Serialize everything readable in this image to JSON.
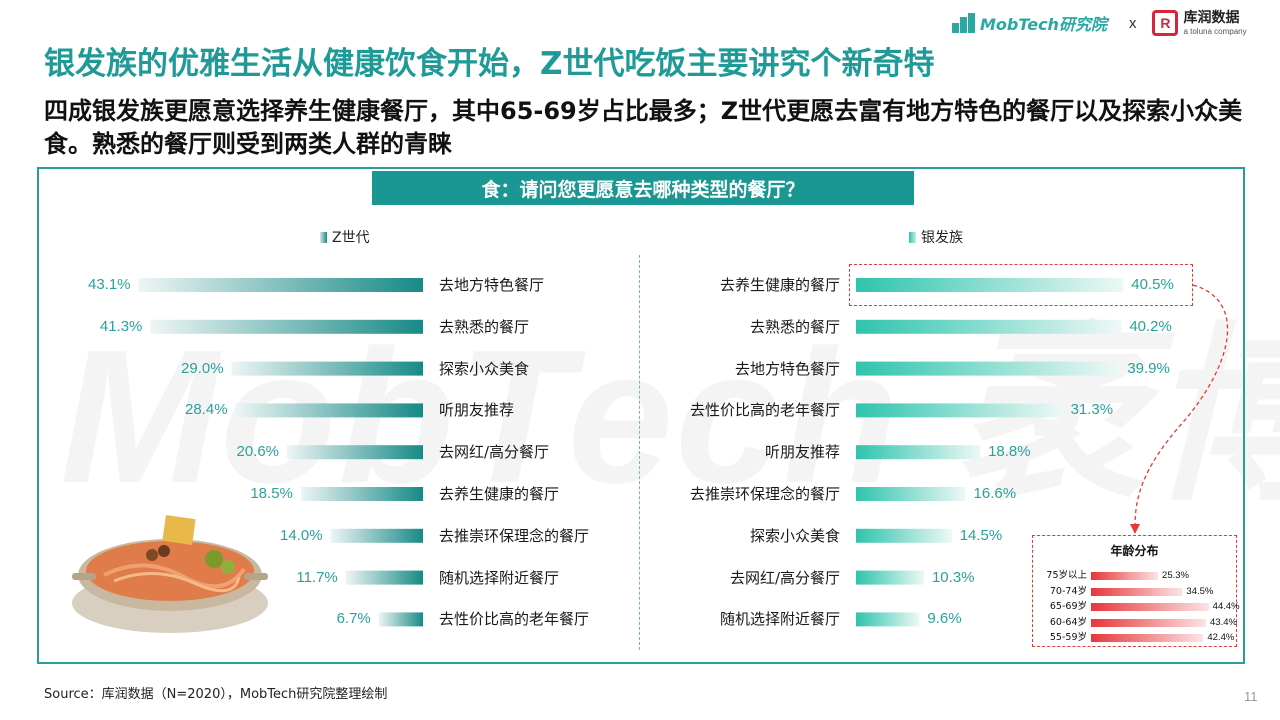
{
  "watermark": "MobTech 袤博",
  "brand": {
    "mobtech": "MobTech研究院",
    "separator": "x",
    "partner_mark": "R",
    "partner_name": "库润数据",
    "partner_sub": "a toluna company"
  },
  "title": "银发族的优雅生活从健康饮食开始，Z世代吃饭主要讲究个新奇特",
  "subtitle": "四成银发族更愿意选择养生健康餐厅，其中65-69岁占比最多；Z世代更愿去富有地方特色的餐厅以及探索小众美食。熟悉的餐厅则受到两类人群的青睐",
  "source": "Source：库润数据（N=2020），MobTech研究院整理绘制",
  "page_number": "11",
  "colors": {
    "accent": "#1a9792",
    "title": "#1f9a97",
    "value_text": "#2aa19c",
    "z_bar": "#178a86",
    "silver_bar": "#2ec4ad",
    "age_bar": "#e6373a",
    "highlight": "#e53935"
  },
  "chart_data": [
    {
      "type": "bar",
      "orientation": "horizontal",
      "title": "食：请问您更愿意去哪种类型的餐厅？",
      "series_name": "Z世代",
      "unit": "%",
      "categories": [
        "去地方特色餐厅",
        "去熟悉的餐厅",
        "探索小众美食",
        "听朋友推荐",
        "去网红/高分餐厅",
        "去养生健康的餐厅",
        "去推崇环保理念的餐厅",
        "随机选择附近餐厅",
        "去性价比高的老年餐厅"
      ],
      "values": [
        43.1,
        41.3,
        29.0,
        28.4,
        20.6,
        18.5,
        14.0,
        11.7,
        6.7
      ],
      "labels": [
        "43.1%",
        "41.3%",
        "29.0%",
        "28.4%",
        "20.6%",
        "18.5%",
        "14.0%",
        "11.7%",
        "6.7%"
      ]
    },
    {
      "type": "bar",
      "orientation": "horizontal",
      "series_name": "银发族",
      "unit": "%",
      "categories": [
        "去养生健康的餐厅",
        "去熟悉的餐厅",
        "去地方特色餐厅",
        "去性价比高的老年餐厅",
        "听朋友推荐",
        "去推崇环保理念的餐厅",
        "探索小众美食",
        "去网红/高分餐厅",
        "随机选择附近餐厅"
      ],
      "values": [
        40.5,
        40.2,
        39.9,
        31.3,
        18.8,
        16.6,
        14.5,
        10.3,
        9.6
      ],
      "labels": [
        "40.5%",
        "40.2%",
        "39.9%",
        "31.3%",
        "18.8%",
        "16.6%",
        "14.5%",
        "10.3%",
        "9.6%"
      ],
      "highlighted_category": "去养生健康的餐厅"
    },
    {
      "type": "bar",
      "orientation": "horizontal",
      "title": "年龄分布",
      "unit": "%",
      "categories": [
        "75岁以上",
        "70-74岁",
        "65-69岁",
        "60-64岁",
        "55-59岁"
      ],
      "values": [
        25.3,
        34.5,
        44.4,
        43.4,
        42.4
      ],
      "labels": [
        "25.3%",
        "34.5%",
        "44.4%",
        "43.4%",
        "42.4%"
      ]
    }
  ]
}
